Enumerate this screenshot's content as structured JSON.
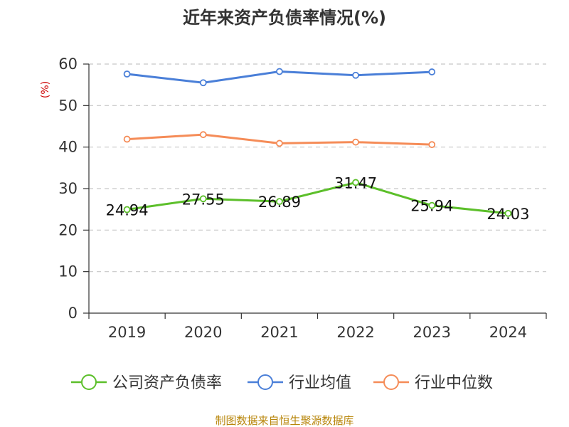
{
  "chart_data": {
    "type": "line",
    "title": "近年来资产负债率情况(%)",
    "ylabel": "(%)",
    "xlabel": "",
    "categories": [
      "2019",
      "2020",
      "2021",
      "2022",
      "2023",
      "2024"
    ],
    "ylim": [
      0,
      60
    ],
    "yticks": [
      0,
      10,
      20,
      30,
      40,
      50,
      60
    ],
    "grid": true,
    "legend_position": "bottom",
    "series": [
      {
        "name": "公司资产负债率",
        "color": "#5cbf2a",
        "values": [
          24.94,
          27.55,
          26.89,
          31.47,
          25.94,
          24.03
        ],
        "labels": [
          "24.94",
          "27.55",
          "26.89",
          "31.47",
          "25.94",
          "24.03"
        ],
        "show_labels": true
      },
      {
        "name": "行业均值",
        "color": "#4a7fd8",
        "values": [
          57.6,
          55.5,
          58.2,
          57.3,
          58.1,
          null
        ],
        "show_labels": false
      },
      {
        "name": "行业中位数",
        "color": "#f58c58",
        "values": [
          41.9,
          43.0,
          40.9,
          41.2,
          40.6,
          null
        ],
        "show_labels": false
      }
    ],
    "source": "制图数据来自恒生聚源数据库"
  }
}
